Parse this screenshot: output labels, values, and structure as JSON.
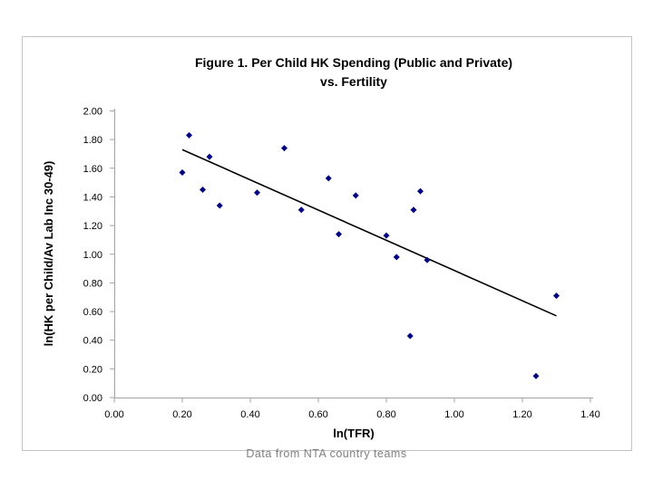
{
  "footer": {
    "caption": "Data from NTA country teams",
    "color": "#808080"
  },
  "chart_data": {
    "type": "scatter",
    "title_line1": "Figure 1.  Per Child HK Spending (Public and Private)",
    "title_line2": "vs. Fertility",
    "xlabel": "ln(TFR)",
    "ylabel": "ln(HK per Child/Av Lab Inc 30-49)",
    "xlim": [
      0,
      1.4
    ],
    "ylim": [
      0,
      2.0
    ],
    "x_tick_labels": [
      "0.00",
      "0.20",
      "0.40",
      "0.60",
      "0.80",
      "1.00",
      "1.20",
      "1.40"
    ],
    "y_tick_labels": [
      "0.00",
      "0.20",
      "0.40",
      "0.60",
      "0.80",
      "1.00",
      "1.20",
      "1.40",
      "1.60",
      "1.80",
      "2.00"
    ],
    "grid": false,
    "legend": false,
    "points": [
      [
        0.2,
        1.57
      ],
      [
        0.22,
        1.83
      ],
      [
        0.26,
        1.45
      ],
      [
        0.28,
        1.68
      ],
      [
        0.31,
        1.34
      ],
      [
        0.42,
        1.43
      ],
      [
        0.5,
        1.74
      ],
      [
        0.55,
        1.31
      ],
      [
        0.63,
        1.53
      ],
      [
        0.66,
        1.14
      ],
      [
        0.71,
        1.41
      ],
      [
        0.8,
        1.13
      ],
      [
        0.83,
        0.98
      ],
      [
        0.87,
        0.43
      ],
      [
        0.88,
        1.31
      ],
      [
        0.9,
        1.44
      ],
      [
        0.92,
        0.96
      ],
      [
        1.24,
        0.15
      ],
      [
        1.3,
        0.71
      ]
    ],
    "trendline": {
      "x1": 0.2,
      "y1": 1.73,
      "x2": 1.3,
      "y2": 0.57
    },
    "marker": {
      "shape": "diamond",
      "color": "#000080",
      "size": 7
    },
    "colors": {
      "axis": "#a3a3a3",
      "trend_line": "#000000",
      "tick_label": "#000000",
      "frame_border": "#c3c3c3"
    }
  }
}
